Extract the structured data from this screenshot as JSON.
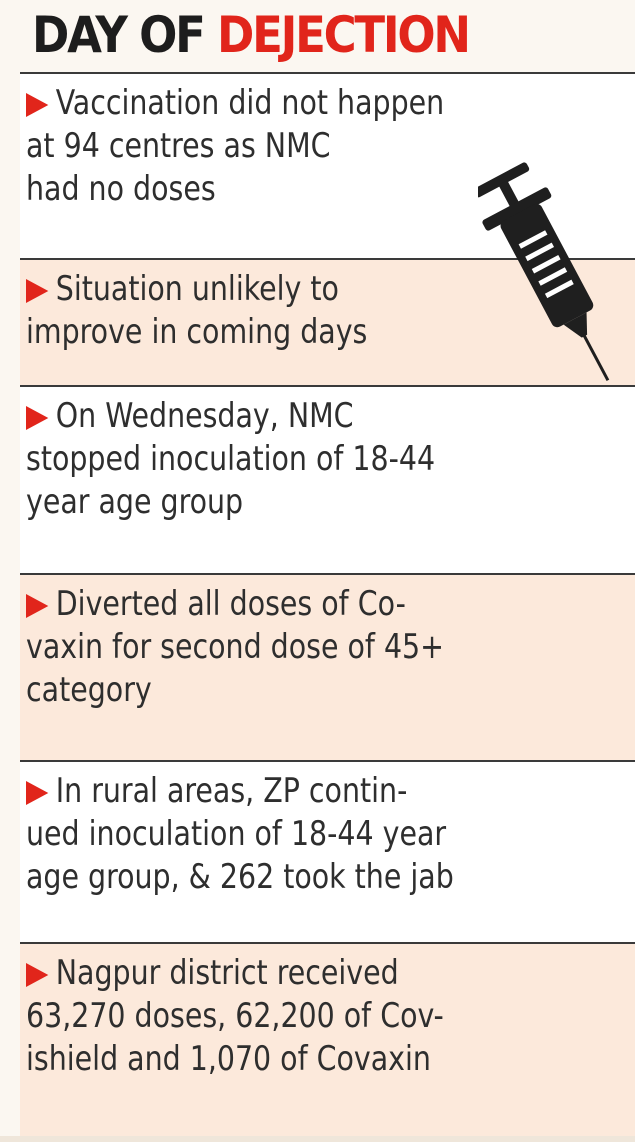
{
  "header": {
    "title_part1": "DAY OF ",
    "title_part2": "DEJECTION"
  },
  "colors": {
    "accent_red": "#e1251b",
    "tint_background": "#fce9db",
    "text": "#2e2e2e"
  },
  "illustration": {
    "icon": "syringe-icon"
  },
  "items": [
    {
      "text": "Vaccination did not happen\nat 94 centres as NMC\nhad no doses"
    },
    {
      "text": "Situation unlikely to\nimprove in coming days"
    },
    {
      "text": "On Wednesday, NMC\nstopped inoculation of 18-44\nyear age group"
    },
    {
      "text": "Diverted all doses of Co-\nvaxin for second dose of 45+\ncategory"
    },
    {
      "text": "In rural areas, ZP contin-\nued inoculation of 18-44 year\nage group, & 262 took the jab"
    },
    {
      "text": "Nagpur district received\n63,270 doses, 62,200 of Cov-\nishield and 1,070 of Covaxin"
    }
  ]
}
